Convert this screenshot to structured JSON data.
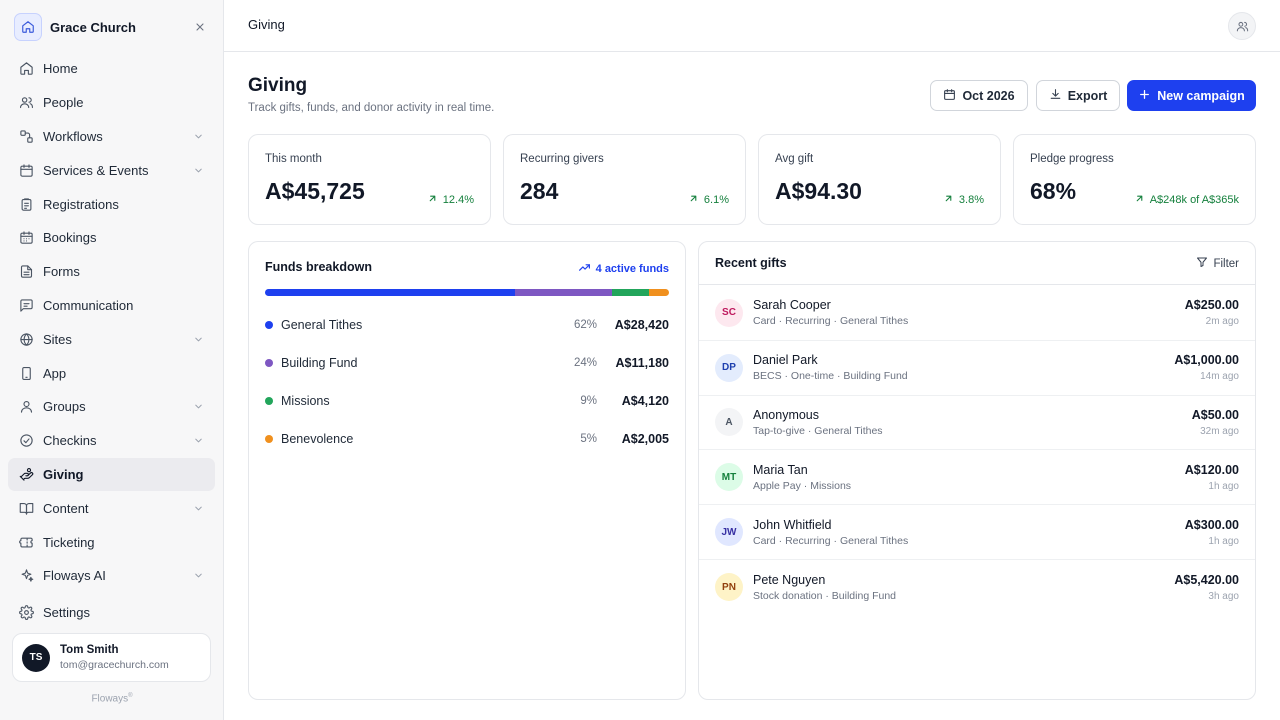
{
  "sidebar": {
    "church_name": "Grace Church",
    "items": [
      {
        "label": "Home",
        "icon": "home-icon",
        "chevron": false,
        "active": false
      },
      {
        "label": "People",
        "icon": "people-icon",
        "chevron": false,
        "active": false
      },
      {
        "label": "Workflows",
        "icon": "workflow-icon",
        "chevron": true,
        "active": false
      },
      {
        "label": "Services & Events",
        "icon": "calendar-icon",
        "chevron": true,
        "active": false
      },
      {
        "label": "Registrations",
        "icon": "clipboard-icon",
        "chevron": false,
        "active": false
      },
      {
        "label": "Bookings",
        "icon": "calendar-grid-icon",
        "chevron": false,
        "active": false
      },
      {
        "label": "Forms",
        "icon": "form-icon",
        "chevron": false,
        "active": false
      },
      {
        "label": "Communication",
        "icon": "message-icon",
        "chevron": false,
        "active": false
      },
      {
        "label": "Sites",
        "icon": "globe-icon",
        "chevron": true,
        "active": false
      },
      {
        "label": "App",
        "icon": "phone-icon",
        "chevron": false,
        "active": false
      },
      {
        "label": "Groups",
        "icon": "groups-icon",
        "chevron": true,
        "active": false
      },
      {
        "label": "Checkins",
        "icon": "check-circle-icon",
        "chevron": true,
        "active": false
      },
      {
        "label": "Giving",
        "icon": "hand-coin-icon",
        "chevron": false,
        "active": true
      },
      {
        "label": "Content",
        "icon": "book-icon",
        "chevron": true,
        "active": false
      },
      {
        "label": "Ticketing",
        "icon": "ticket-icon",
        "chevron": false,
        "active": false
      },
      {
        "label": "Floways AI",
        "icon": "sparkle-icon",
        "chevron": true,
        "active": false
      }
    ],
    "settings_label": "Settings",
    "user": {
      "initials": "TS",
      "name": "Tom Smith",
      "email": "tom@gracechurch.com"
    },
    "powered_by": "Floways",
    "powered_mark": "®"
  },
  "topbar": {
    "title": "Giving"
  },
  "header": {
    "title": "Giving",
    "subtitle": "Track gifts, funds, and donor activity in real time.",
    "month_label": "Oct 2026",
    "export_label": "Export",
    "new_campaign_label": "New campaign"
  },
  "stats": [
    {
      "label": "This month",
      "value": "A$45,725",
      "delta": "12.4%"
    },
    {
      "label": "Recurring givers",
      "value": "284",
      "delta": "6.1%"
    },
    {
      "label": "Avg gift",
      "value": "A$94.30",
      "delta": "3.8%"
    },
    {
      "label": "Pledge progress",
      "value": "68%",
      "delta": "A$248k of A$365k"
    }
  ],
  "funds": {
    "title": "Funds breakdown",
    "active_label": "4 active funds",
    "items": [
      {
        "name": "General Tithes",
        "pct": "62%",
        "amount": "A$28,420",
        "share": 62,
        "color": "#1e40ef"
      },
      {
        "name": "Building Fund",
        "pct": "24%",
        "amount": "A$11,180",
        "share": 24,
        "color": "#7e57c2"
      },
      {
        "name": "Missions",
        "pct": "9%",
        "amount": "A$4,120",
        "share": 9,
        "color": "#22a55b"
      },
      {
        "name": "Benevolence",
        "pct": "5%",
        "amount": "A$2,005",
        "share": 5,
        "color": "#f0901e"
      }
    ]
  },
  "gifts": {
    "title": "Recent gifts",
    "filter_label": "Filter",
    "items": [
      {
        "initials": "SC",
        "name": "Sarah Cooper",
        "meta": "Card · Recurring · General Tithes",
        "amount": "A$250.00",
        "time": "2m ago",
        "bg": "#fde8ef",
        "fg": "#be185d"
      },
      {
        "initials": "DP",
        "name": "Daniel Park",
        "meta": "BECS · One-time · Building Fund",
        "amount": "A$1,000.00",
        "time": "14m ago",
        "bg": "#e3ecfd",
        "fg": "#1e40af"
      },
      {
        "initials": "A",
        "name": "Anonymous",
        "meta": "Tap-to-give · General Tithes",
        "amount": "A$50.00",
        "time": "32m ago",
        "bg": "#f3f4f6",
        "fg": "#4b5563"
      },
      {
        "initials": "MT",
        "name": "Maria Tan",
        "meta": "Apple Pay · Missions",
        "amount": "A$120.00",
        "time": "1h ago",
        "bg": "#dcfce7",
        "fg": "#15803d"
      },
      {
        "initials": "JW",
        "name": "John Whitfield",
        "meta": "Card · Recurring · General Tithes",
        "amount": "A$300.00",
        "time": "1h ago",
        "bg": "#e0e7ff",
        "fg": "#3730a3"
      },
      {
        "initials": "PN",
        "name": "Pete Nguyen",
        "meta": "Stock donation · Building Fund",
        "amount": "A$5,420.00",
        "time": "3h ago",
        "bg": "#fef3c7",
        "fg": "#92400e"
      }
    ]
  }
}
